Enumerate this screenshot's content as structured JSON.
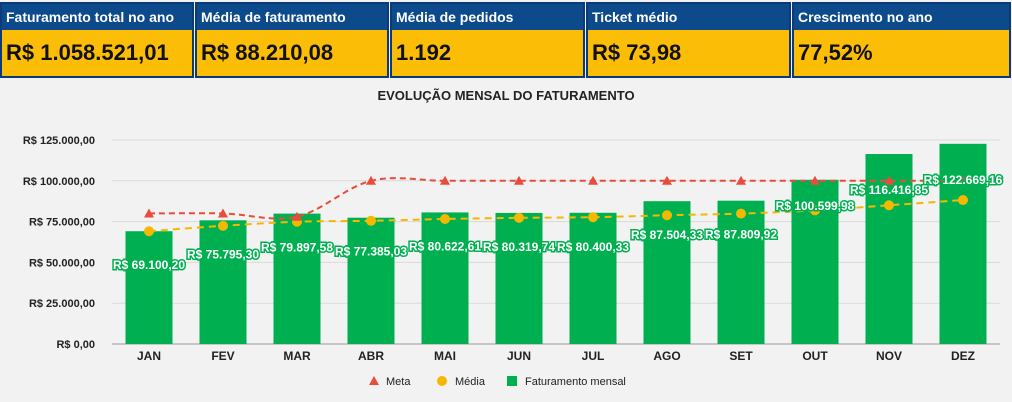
{
  "kpis": [
    {
      "label": "Faturamento total no ano",
      "value": "R$ 1.058.521,01"
    },
    {
      "label": "Média de faturamento",
      "value": "R$ 88.210,08"
    },
    {
      "label": "Média de pedidos",
      "value": "1.192"
    },
    {
      "label": "Ticket médio",
      "value": "R$ 73,98"
    },
    {
      "label": "Crescimento no ano",
      "value": "77,52%"
    }
  ],
  "colors": {
    "kpi_header": "#0d4a8c",
    "kpi_body": "#fbbd06",
    "bar": "#00b050",
    "meta": "#e74c3c",
    "media": "#f5b800"
  },
  "chart_data": {
    "type": "bar",
    "title": "EVOLUÇÃO MENSAL DO FATURAMENTO",
    "categories": [
      "JAN",
      "FEV",
      "MAR",
      "ABR",
      "MAI",
      "JUN",
      "JUL",
      "AGO",
      "SET",
      "OUT",
      "NOV",
      "DEZ"
    ],
    "ylim": [
      0,
      125000
    ],
    "yticks": [
      "R$ 0,00",
      "R$ 25.000,00",
      "R$ 50.000,00",
      "R$ 75.000,00",
      "R$ 100.000,00",
      "R$ 125.000,00"
    ],
    "grid": true,
    "legend_position": "bottom",
    "series": [
      {
        "name": "Meta",
        "type": "line",
        "values": [
          80000,
          80000,
          78000,
          100000,
          100000,
          100000,
          100000,
          100000,
          100000,
          100000,
          100000,
          100000
        ]
      },
      {
        "name": "Média",
        "type": "line",
        "values": [
          69100,
          72400,
          74900,
          75500,
          76600,
          77300,
          77700,
          78900,
          79900,
          81900,
          85000,
          88210
        ]
      },
      {
        "name": "Faturamento mensal",
        "type": "bar",
        "values": [
          69100.2,
          75795.3,
          79897.58,
          77385.03,
          80622.61,
          80319.74,
          80400.33,
          87504.33,
          87809.92,
          100599.98,
          116416.85,
          122669.16
        ]
      }
    ],
    "data_labels": [
      "R$ 69.100,20",
      "R$ 75.795,30",
      "R$ 79.897,58",
      "R$ 77.385,03",
      "R$ 80.622,61",
      "R$ 80.319,74",
      "R$ 80.400,33",
      "R$ 87.504,33",
      "R$ 87.809,92",
      "R$ 100.599,98",
      "R$ 116.416,85",
      "R$ 122.669,16"
    ]
  }
}
